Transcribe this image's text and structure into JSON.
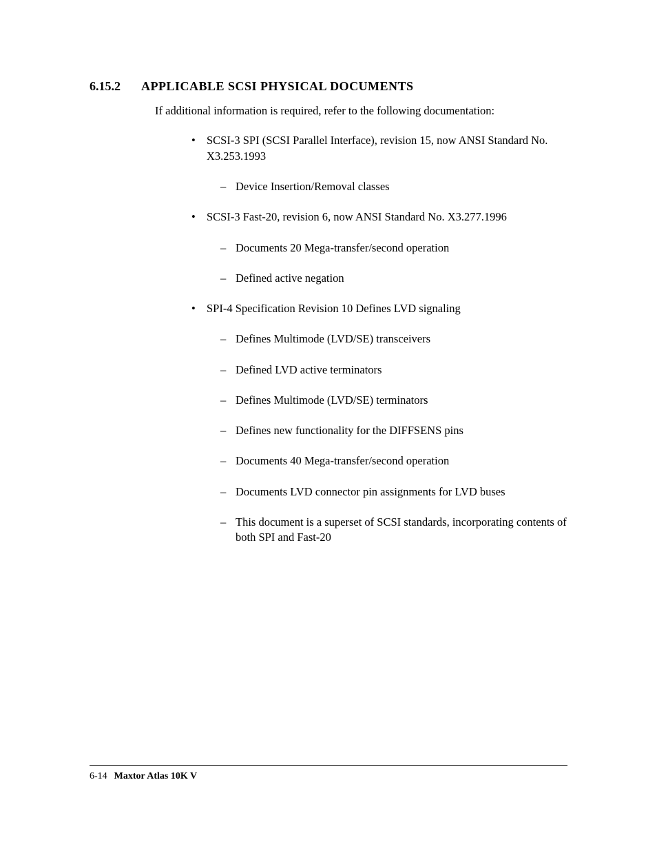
{
  "section": {
    "number": "6.15.2",
    "title": "APPLICABLE SCSI PHYSICAL DOCUMENTS",
    "intro": "If additional information is required, refer to the following documentation:"
  },
  "bullets": [
    {
      "text": "SCSI-3 SPI (SCSI Parallel Interface), revision 15, now ANSI Standard No. X3.253.1993",
      "sub": [
        "Device Insertion/Removal classes"
      ]
    },
    {
      "text": "SCSI-3 Fast-20, revision 6, now ANSI Standard No. X3.277.1996",
      "sub": [
        "Documents 20 Mega-transfer/second operation",
        "Defined active negation"
      ]
    },
    {
      "text": "SPI-4 Specification Revision 10 Defines LVD signaling",
      "sub": [
        "Defines Multimode (LVD/SE) transceivers",
        "Defined LVD active terminators",
        "Defines Multimode (LVD/SE) terminators",
        "Defines new functionality for the DIFFSENS pins",
        "Documents 40 Mega-transfer/second operation",
        "Documents LVD connector pin assignments for LVD buses",
        "This document is a superset of SCSI standards, incorporating contents of both SPI and Fast-20"
      ]
    }
  ],
  "footer": {
    "page_num": "6-14",
    "doc_title": "Maxtor Atlas 10K V"
  },
  "colors": {
    "text": "#000000",
    "background": "#ffffff",
    "rule": "#000000"
  },
  "typography": {
    "heading_fontsize": 18,
    "body_fontsize": 16.5,
    "footer_fontsize": 14,
    "font_family": "Times New Roman"
  }
}
